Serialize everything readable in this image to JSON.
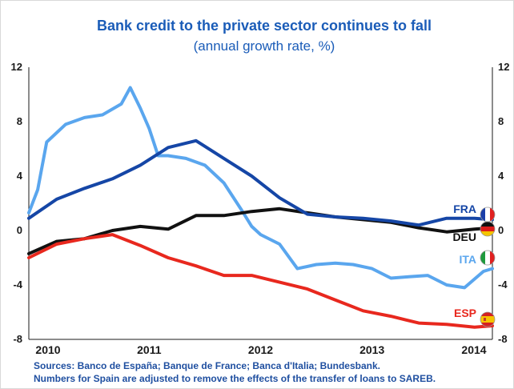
{
  "chart_data": {
    "type": "line",
    "title": "Bank credit to the private sector continues to fall",
    "subtitle": "(annual growth rate, %)",
    "ylim": [
      -8,
      12
    ],
    "yticks": [
      "12",
      "8",
      "4",
      "0",
      "-4",
      "-8"
    ],
    "xlim": [
      2009.92,
      2014.08
    ],
    "xticks": [
      "2010",
      "2011",
      "2012",
      "2013",
      "2014"
    ],
    "grid": false,
    "series": [
      {
        "name": "FRA",
        "color": "#1546a6",
        "x": [
          2009.92,
          2010.17,
          2010.42,
          2010.67,
          2010.92,
          2011.17,
          2011.42,
          2011.67,
          2011.92,
          2012.17,
          2012.42,
          2012.67,
          2012.92,
          2013.17,
          2013.42,
          2013.67,
          2013.92,
          2014.08
        ],
        "values": [
          0.9,
          2.3,
          3.1,
          3.8,
          4.8,
          6.1,
          6.6,
          5.3,
          4.0,
          2.4,
          1.2,
          1.0,
          0.9,
          0.7,
          0.4,
          0.9,
          0.9,
          0.8
        ]
      },
      {
        "name": "DEU",
        "color": "#111111",
        "x": [
          2009.92,
          2010.17,
          2010.42,
          2010.67,
          2010.92,
          2011.17,
          2011.42,
          2011.67,
          2011.92,
          2012.17,
          2012.42,
          2012.67,
          2012.92,
          2013.17,
          2013.42,
          2013.67,
          2013.92,
          2014.08
        ],
        "values": [
          -1.7,
          -0.8,
          -0.6,
          0.0,
          0.3,
          0.1,
          1.1,
          1.1,
          1.4,
          1.6,
          1.3,
          1.0,
          0.8,
          0.6,
          0.2,
          -0.1,
          0.1,
          0.2
        ]
      },
      {
        "name": "ITA",
        "color": "#5aa6ee",
        "x": [
          2009.92,
          2010.0,
          2010.08,
          2010.25,
          2010.42,
          2010.58,
          2010.75,
          2010.83,
          2010.92,
          2011.0,
          2011.08,
          2011.17,
          2011.33,
          2011.5,
          2011.67,
          2011.75,
          2011.83,
          2011.92,
          2012.0,
          2012.17,
          2012.33,
          2012.5,
          2012.67,
          2012.83,
          2013.0,
          2013.17,
          2013.33,
          2013.5,
          2013.67,
          2013.83,
          2014.0,
          2014.08
        ],
        "values": [
          1.3,
          3.0,
          6.5,
          7.8,
          8.3,
          8.5,
          9.3,
          10.5,
          9.0,
          7.5,
          5.5,
          5.5,
          5.3,
          4.8,
          3.5,
          2.5,
          1.5,
          0.3,
          -0.3,
          -1.0,
          -2.8,
          -2.5,
          -2.4,
          -2.5,
          -2.8,
          -3.5,
          -3.4,
          -3.3,
          -4.0,
          -4.2,
          -3.0,
          -2.8
        ]
      },
      {
        "name": "ESP",
        "color": "#e8281e",
        "x": [
          2009.92,
          2010.17,
          2010.42,
          2010.67,
          2010.92,
          2011.17,
          2011.42,
          2011.67,
          2011.92,
          2012.17,
          2012.42,
          2012.67,
          2012.92,
          2013.17,
          2013.42,
          2013.67,
          2013.92,
          2014.08
        ],
        "values": [
          -2.0,
          -1.0,
          -0.6,
          -0.3,
          -1.1,
          -2.0,
          -2.6,
          -3.3,
          -3.3,
          -3.8,
          -4.3,
          -5.1,
          -5.9,
          -6.3,
          -6.8,
          -6.9,
          -7.1,
          -7.0
        ]
      }
    ],
    "series_labels": [
      "FRA",
      "DEU",
      "ITA",
      "ESP"
    ]
  },
  "colors": {
    "title": "#1a5cb8",
    "axis": "#1a1a1a",
    "footnote": "#1f4fa0"
  },
  "footnote": {
    "line1": "Sources: Banco de España; Banque de France; Banca d'Italia;  Bundesbank.",
    "line2": "Numbers for Spain are adjusted to remove the effects of the transfer of loans to SAREB."
  },
  "flags": [
    "france-flag-icon",
    "germany-flag-icon",
    "italy-flag-icon",
    "spain-flag-icon"
  ]
}
